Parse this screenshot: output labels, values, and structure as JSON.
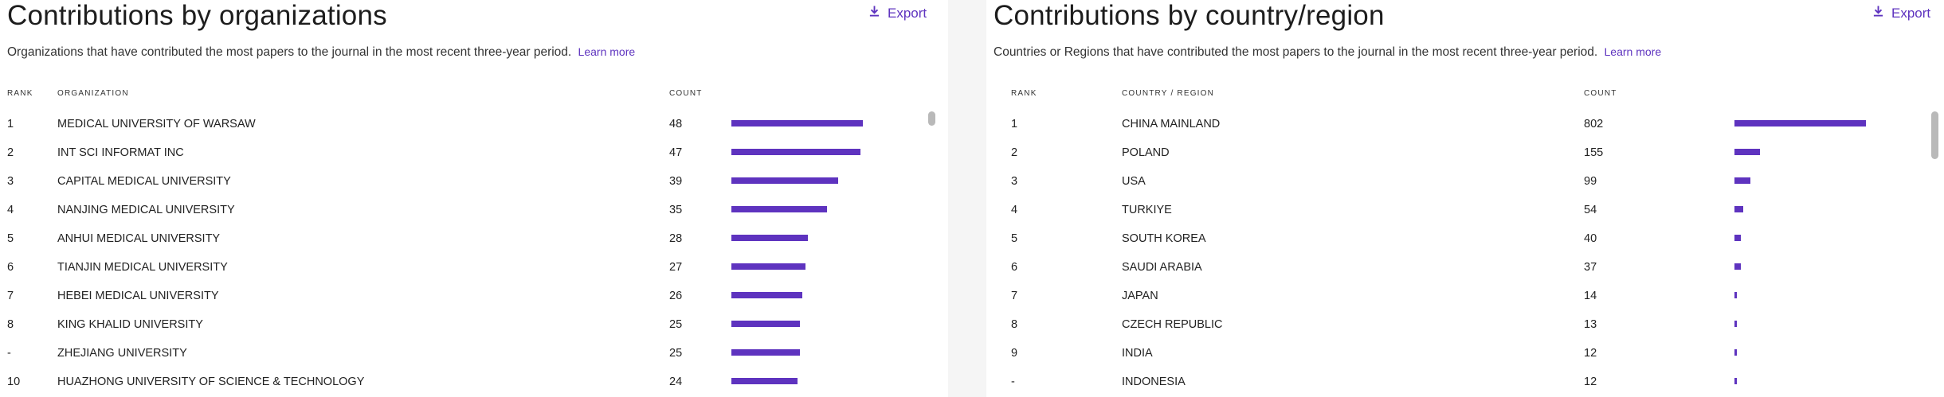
{
  "colors": {
    "accent": "#5e33bf",
    "bar": "#5e33bf"
  },
  "org": {
    "title": "Contributions by organizations",
    "export_label": "Export",
    "export_icon": "download-icon",
    "description": "Organizations that have contributed the most papers to the journal in the most recent three-year period.",
    "learn_more": "Learn more",
    "columns": {
      "rank": "RANK",
      "name": "ORGANIZATION",
      "count": "COUNT"
    },
    "max_count": 48,
    "rows": [
      {
        "rank": "1",
        "name": "MEDICAL UNIVERSITY OF WARSAW",
        "count": "48",
        "value": 48
      },
      {
        "rank": "2",
        "name": "INT SCI INFORMAT INC",
        "count": "47",
        "value": 47
      },
      {
        "rank": "3",
        "name": "CAPITAL MEDICAL UNIVERSITY",
        "count": "39",
        "value": 39
      },
      {
        "rank": "4",
        "name": "NANJING MEDICAL UNIVERSITY",
        "count": "35",
        "value": 35
      },
      {
        "rank": "5",
        "name": "ANHUI MEDICAL UNIVERSITY",
        "count": "28",
        "value": 28
      },
      {
        "rank": "6",
        "name": "TIANJIN MEDICAL UNIVERSITY",
        "count": "27",
        "value": 27
      },
      {
        "rank": "7",
        "name": "HEBEI MEDICAL UNIVERSITY",
        "count": "26",
        "value": 26
      },
      {
        "rank": "8",
        "name": "KING KHALID UNIVERSITY",
        "count": "25",
        "value": 25
      },
      {
        "rank": "-",
        "name": "ZHEJIANG UNIVERSITY",
        "count": "25",
        "value": 25
      },
      {
        "rank": "10",
        "name": "HUAZHONG UNIVERSITY OF SCIENCE & TECHNOLOGY",
        "count": "24",
        "value": 24
      }
    ]
  },
  "country": {
    "title": "Contributions by country/region",
    "export_label": "Export",
    "export_icon": "download-icon",
    "description": "Countries or Regions that have contributed the most papers to the journal in the most recent three-year period.",
    "learn_more": "Learn more",
    "columns": {
      "rank": "RANK",
      "name": "COUNTRY / REGION",
      "count": "COUNT"
    },
    "max_count": 802,
    "rows": [
      {
        "rank": "1",
        "name": "CHINA MAINLAND",
        "count": "802",
        "value": 802
      },
      {
        "rank": "2",
        "name": "POLAND",
        "count": "155",
        "value": 155
      },
      {
        "rank": "3",
        "name": "USA",
        "count": "99",
        "value": 99
      },
      {
        "rank": "4",
        "name": "TURKIYE",
        "count": "54",
        "value": 54
      },
      {
        "rank": "5",
        "name": "SOUTH KOREA",
        "count": "40",
        "value": 40
      },
      {
        "rank": "6",
        "name": "SAUDI ARABIA",
        "count": "37",
        "value": 37
      },
      {
        "rank": "7",
        "name": "JAPAN",
        "count": "14",
        "value": 14
      },
      {
        "rank": "8",
        "name": "CZECH REPUBLIC",
        "count": "13",
        "value": 13
      },
      {
        "rank": "9",
        "name": "INDIA",
        "count": "12",
        "value": 12
      },
      {
        "rank": "-",
        "name": "INDONESIA",
        "count": "12",
        "value": 12
      }
    ]
  }
}
